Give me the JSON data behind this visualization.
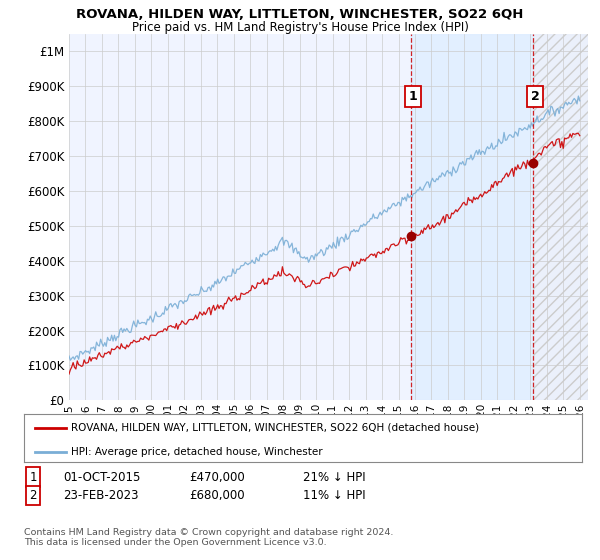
{
  "title": "ROVANA, HILDEN WAY, LITTLETON, WINCHESTER, SO22 6QH",
  "subtitle": "Price paid vs. HM Land Registry's House Price Index (HPI)",
  "ylabel_ticks": [
    "£0",
    "£100K",
    "£200K",
    "£300K",
    "£400K",
    "£500K",
    "£600K",
    "£700K",
    "£800K",
    "£900K",
    "£1M"
  ],
  "ytick_values": [
    0,
    100000,
    200000,
    300000,
    400000,
    500000,
    600000,
    700000,
    800000,
    900000,
    1000000
  ],
  "x_start_year": 1995,
  "x_end_year": 2026,
  "hpi_color": "#7aaed6",
  "price_color": "#cc0000",
  "vline_color": "#cc0000",
  "shade_color": "#ddeeff",
  "marker1_year": 2015.75,
  "marker1_price": 470000,
  "marker1_label": "1",
  "marker2_year": 2023.15,
  "marker2_price": 680000,
  "marker2_label": "2",
  "legend_label_red": "ROVANA, HILDEN WAY, LITTLETON, WINCHESTER, SO22 6QH (detached house)",
  "legend_label_blue": "HPI: Average price, detached house, Winchester",
  "footnote": "Contains HM Land Registry data © Crown copyright and database right 2024.\nThis data is licensed under the Open Government Licence v3.0.",
  "background_color": "#f0f4ff",
  "grid_color": "#cccccc"
}
